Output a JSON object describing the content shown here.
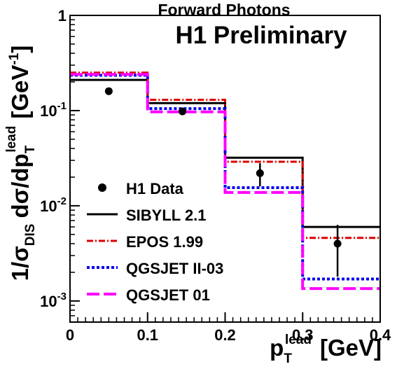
{
  "chart_data": {
    "type": "line",
    "title": "Forward Photons",
    "label": "H1 Preliminary",
    "xlabel_main": "p",
    "xlabel_sub": "T",
    "xlabel_sup": "lead",
    "xlabel_unit": "[GeV]",
    "ylabel_prefix": "1/σ",
    "ylabel_prefix_sub": "DIS",
    "ylabel_mid": "dσ/dp",
    "ylabel_mid_sub": "T",
    "ylabel_mid_sup": "lead",
    "ylabel_unit": "[GeV",
    "ylabel_unit_sup": "-1",
    "ylabel_unit_close": "]",
    "xlim": [
      0,
      0.4
    ],
    "ylim": [
      0.0006,
      1.0
    ],
    "yscale": "log",
    "grid": false,
    "legend_position": "bottom-left",
    "x_ticks": [
      {
        "value": 0,
        "label": "0"
      },
      {
        "value": 0.1,
        "label": "0.1"
      },
      {
        "value": 0.2,
        "label": "0.2"
      },
      {
        "value": 0.3,
        "label": "0.3"
      },
      {
        "value": 0.4,
        "label": "0.4"
      }
    ],
    "y_ticks": [
      {
        "value": 1,
        "base": "1",
        "exp": ""
      },
      {
        "value": 0.1,
        "base": "10",
        "exp": "-1"
      },
      {
        "value": 0.01,
        "base": "10",
        "exp": "-2"
      },
      {
        "value": 0.001,
        "base": "10",
        "exp": "-3"
      }
    ],
    "bin_edges": [
      0,
      0.1,
      0.2,
      0.3,
      0.4
    ],
    "data": {
      "name": "H1 Data",
      "x": [
        0.05,
        0.145,
        0.245,
        0.345
      ],
      "y": [
        0.16,
        0.098,
        0.022,
        0.004
      ],
      "err_low": [
        0.014,
        0.008,
        0.006,
        0.0022
      ],
      "err_high": [
        0.014,
        0.008,
        0.006,
        0.0023
      ],
      "color": "#000000"
    },
    "series": [
      {
        "name": "SIBYLL 2.1",
        "values": [
          0.21,
          0.12,
          0.032,
          0.006
        ],
        "color": "#000000",
        "style": "solid"
      },
      {
        "name": "EPOS 1.99",
        "values": [
          0.25,
          0.13,
          0.029,
          0.0046
        ],
        "color": "#dd0000",
        "style": "dashdot"
      },
      {
        "name": "QGSJET II-03",
        "values": [
          0.235,
          0.105,
          0.0155,
          0.0017
        ],
        "color": "#0000ee",
        "style": "dotted"
      },
      {
        "name": "QGSJET 01",
        "values": [
          0.24,
          0.097,
          0.0138,
          0.00135
        ],
        "color": "#ff00ff",
        "style": "longdash"
      }
    ]
  }
}
